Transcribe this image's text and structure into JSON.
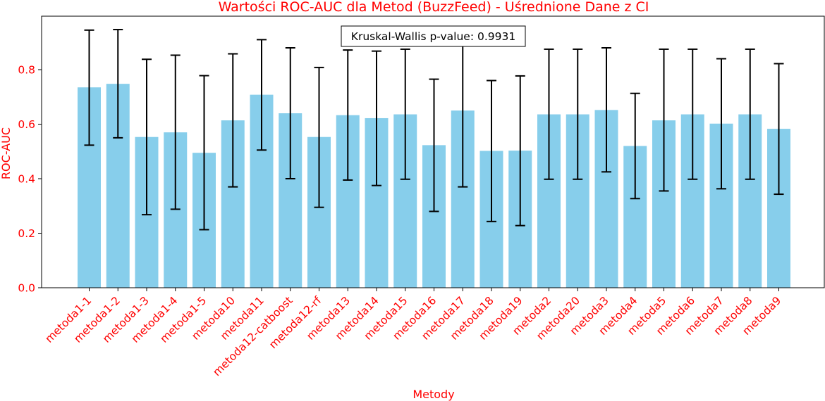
{
  "chart_data": {
    "type": "bar",
    "title": "Wartości ROC-AUC dla Metod (BuzzFeed) - Uśrednione Dane z CI",
    "xlabel": "Metody",
    "ylabel": "ROC-AUC",
    "ylim": [
      0,
      1.0
    ],
    "yticks": [
      "0.0",
      "0.2",
      "0.4",
      "0.6",
      "0.8"
    ],
    "grid": false,
    "bar_color": "#87ceeb",
    "text_color": "#ff0000",
    "annotation": "Kruskal-Wallis p-value: 0.9931",
    "categories": [
      "metoda1-1",
      "metoda1-2",
      "metoda1-3",
      "metoda1-4",
      "metoda1-5",
      "metoda10",
      "metoda11",
      "metoda12-catboost",
      "metoda12-rf",
      "metoda13",
      "metoda14",
      "metoda15",
      "metoda16",
      "metoda17",
      "metoda18",
      "metoda19",
      "metoda2",
      "metoda20",
      "metoda3",
      "metoda4",
      "metoda5",
      "metoda6",
      "metoda7",
      "metoda8",
      "metoda9"
    ],
    "values": [
      0.735,
      0.748,
      0.553,
      0.57,
      0.495,
      0.614,
      0.708,
      0.64,
      0.553,
      0.633,
      0.622,
      0.636,
      0.523,
      0.65,
      0.502,
      0.503,
      0.636,
      0.636,
      0.652,
      0.52,
      0.614,
      0.636,
      0.602,
      0.636,
      0.583
    ],
    "ci_lower": [
      0.523,
      0.55,
      0.268,
      0.288,
      0.213,
      0.37,
      0.505,
      0.4,
      0.295,
      0.395,
      0.375,
      0.398,
      0.28,
      0.37,
      0.243,
      0.228,
      0.398,
      0.398,
      0.425,
      0.327,
      0.355,
      0.398,
      0.363,
      0.398,
      0.343
    ],
    "ci_upper": [
      0.945,
      0.947,
      0.838,
      0.853,
      0.778,
      0.858,
      0.91,
      0.88,
      0.808,
      0.872,
      0.868,
      0.875,
      0.765,
      0.93,
      0.76,
      0.777,
      0.875,
      0.875,
      0.88,
      0.713,
      0.875,
      0.875,
      0.84,
      0.875,
      0.822
    ]
  }
}
